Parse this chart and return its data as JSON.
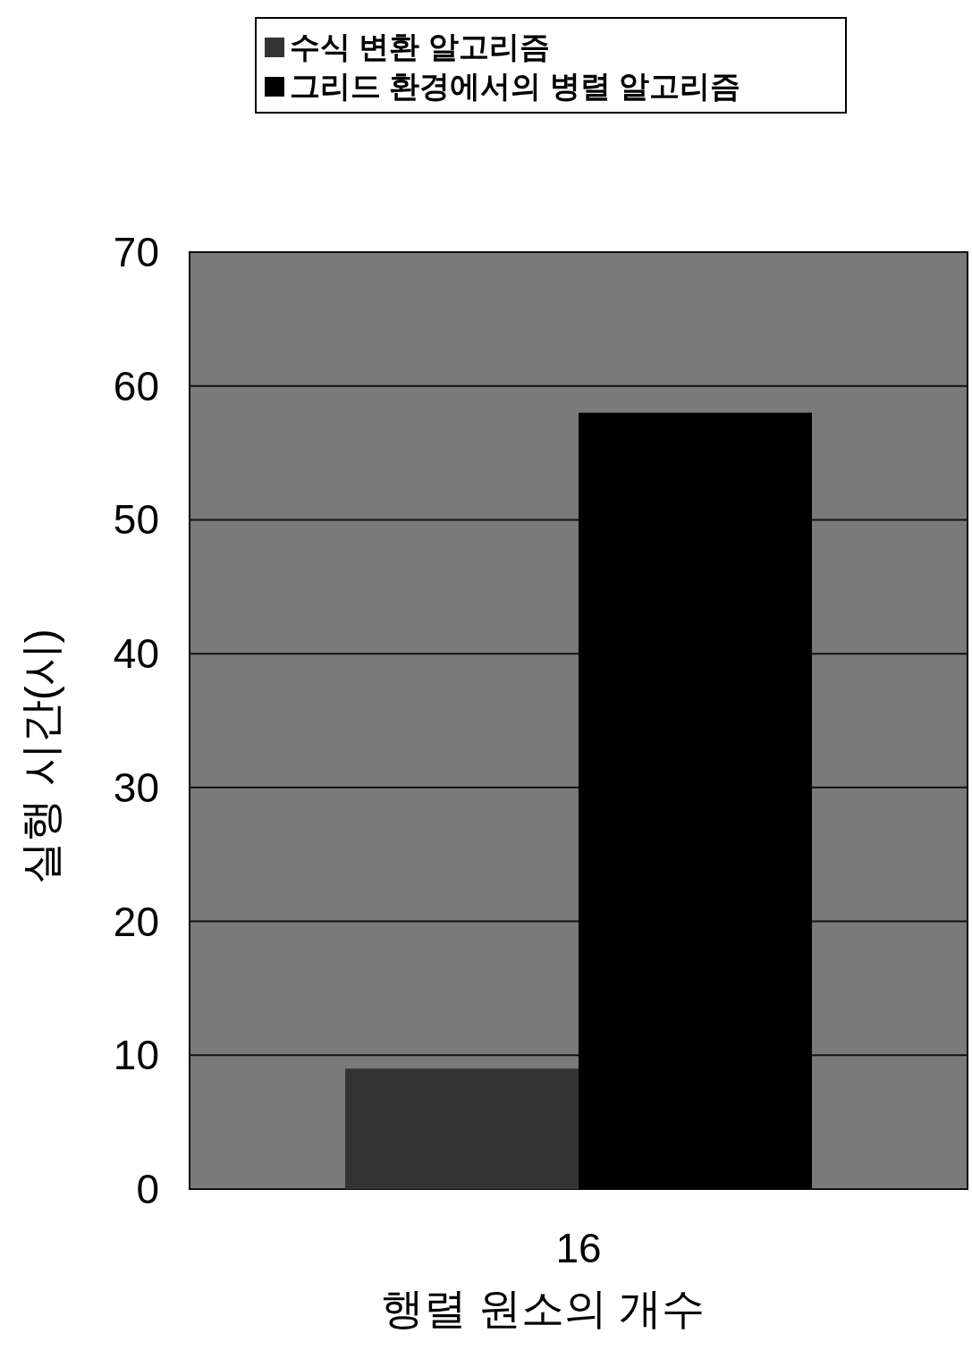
{
  "chart_data": {
    "type": "bar",
    "categories": [
      "16"
    ],
    "series": [
      {
        "name": "수식 변환 알고리즘",
        "color": "#333333",
        "values": [
          9
        ]
      },
      {
        "name": "그리드 환경에서의 병렬 알고리즘",
        "color": "#000000",
        "values": [
          58
        ]
      }
    ],
    "ylim": [
      0,
      70
    ],
    "yticks": [
      0,
      10,
      20,
      30,
      40,
      50,
      60,
      70
    ],
    "ylabel": "실행 시간(시)",
    "xlabel": "행렬 원소의 개수",
    "grid": "y",
    "legend": "top"
  }
}
